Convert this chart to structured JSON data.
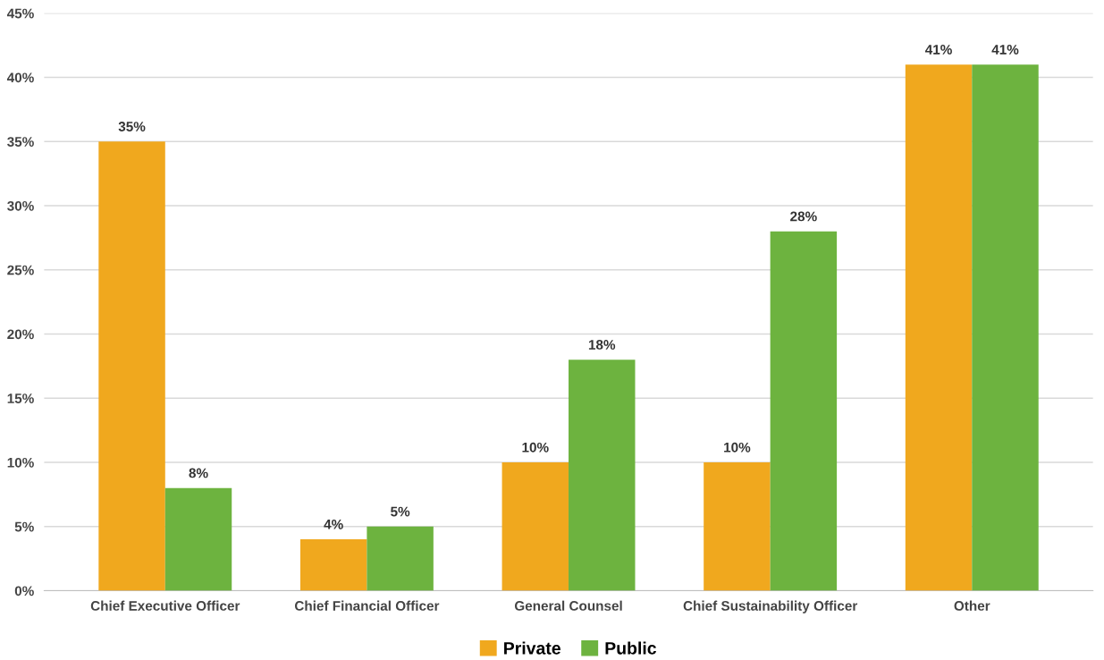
{
  "chart_data": {
    "type": "bar",
    "categories": [
      "Chief Executive Officer",
      "Chief Financial Officer",
      "General Counsel",
      "Chief Sustainability Officer",
      "Other"
    ],
    "series": [
      {
        "name": "Private",
        "color": "#f0a81e",
        "values": [
          35,
          4,
          10,
          10,
          41
        ],
        "value_labels": [
          "35%",
          "4%",
          "10%",
          "10%",
          "41%"
        ]
      },
      {
        "name": "Public",
        "color": "#6db33f",
        "values": [
          8,
          5,
          18,
          28,
          41
        ],
        "value_labels": [
          "8%",
          "5%",
          "18%",
          "28%",
          "41%"
        ]
      }
    ],
    "ylim": [
      0,
      45
    ],
    "yticks": [
      {
        "value": 0,
        "label": "0%"
      },
      {
        "value": 5,
        "label": "5%"
      },
      {
        "value": 10,
        "label": "10%"
      },
      {
        "value": 15,
        "label": "15%"
      },
      {
        "value": 20,
        "label": "20%"
      },
      {
        "value": 25,
        "label": "25%"
      },
      {
        "value": 30,
        "label": "30%"
      },
      {
        "value": 35,
        "label": "35%"
      },
      {
        "value": 40,
        "label": "40%"
      },
      {
        "value": 45,
        "label": "45%"
      }
    ],
    "grid": "y",
    "legend": "bottom"
  }
}
